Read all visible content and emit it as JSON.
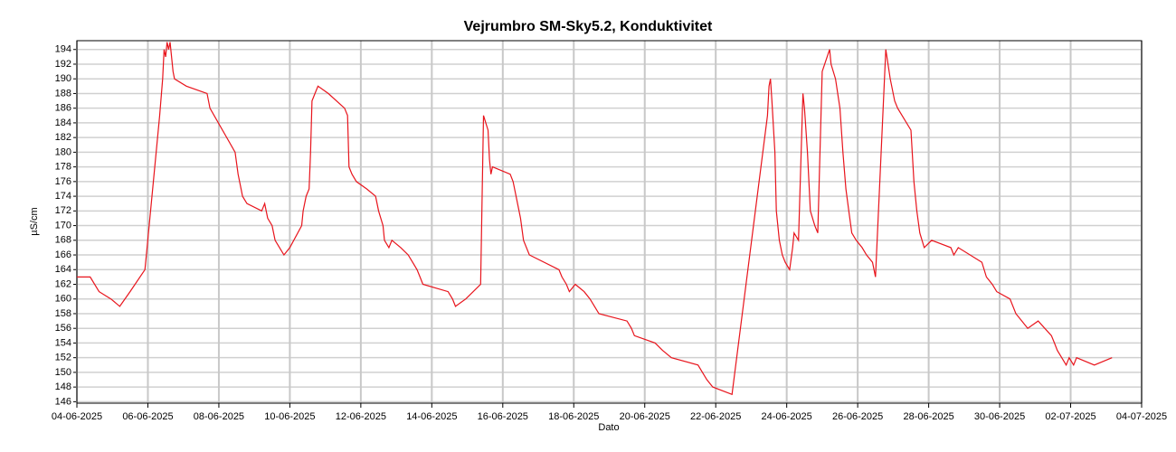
{
  "chart_data": {
    "type": "line",
    "title": "Vejrumbro SM-Sky5.2, Konduktivitet",
    "xlabel": "Dato",
    "ylabel": "µS/cm",
    "xlim": [
      "04-06-2025",
      "04-07-2025"
    ],
    "xticks": [
      "04-06-2025",
      "06-06-2025",
      "08-06-2025",
      "10-06-2025",
      "12-06-2025",
      "14-06-2025",
      "16-06-2025",
      "18-06-2025",
      "20-06-2025",
      "22-06-2025",
      "24-06-2025",
      "26-06-2025",
      "28-06-2025",
      "30-06-2025",
      "02-07-2025",
      "04-07-2025"
    ],
    "ylim": [
      145.8,
      195.2
    ],
    "yticks": [
      146,
      148,
      150,
      152,
      154,
      156,
      158,
      160,
      162,
      164,
      166,
      168,
      170,
      172,
      174,
      176,
      178,
      180,
      182,
      184,
      186,
      188,
      190,
      192,
      194
    ],
    "grid": true,
    "x": [
      "04-06-2025 00:00",
      "04-06-2025 09:00",
      "04-06-2025 15:00",
      "04-06-2025 23:00",
      "05-06-2025 05:00",
      "05-06-2025 12:00",
      "05-06-2025 22:00",
      "05-06-2025 23:00",
      "06-06-2025 08:00",
      "06-06-2025 10:00",
      "06-06-2025 11:00",
      "06-06-2025 12:00",
      "06-06-2025 13:00",
      "06-06-2025 14:00",
      "06-06-2025 15:00",
      "06-06-2025 17:00",
      "06-06-2025 18:00",
      "07-06-2025 02:00",
      "07-06-2025 16:00",
      "07-06-2025 18:00",
      "08-06-2025 11:00",
      "08-06-2025 13:00",
      "08-06-2025 15:00",
      "08-06-2025 16:00",
      "08-06-2025 19:00",
      "09-06-2025 05:00",
      "09-06-2025 07:00",
      "09-06-2025 09:00",
      "09-06-2025 12:00",
      "09-06-2025 14:00",
      "09-06-2025 17:00",
      "09-06-2025 20:00",
      "10-06-2025 00:00",
      "10-06-2025 08:00",
      "10-06-2025 09:00",
      "10-06-2025 11:00",
      "10-06-2025 13:00",
      "10-06-2025 14:00",
      "10-06-2025 15:00",
      "10-06-2025 17:00",
      "10-06-2025 19:00",
      "11-06-2025 02:00",
      "11-06-2025 13:00",
      "11-06-2025 15:00",
      "11-06-2025 16:00",
      "11-06-2025 18:00",
      "11-06-2025 21:00",
      "12-06-2025 04:00",
      "12-06-2025 10:00",
      "12-06-2025 12:00",
      "12-06-2025 15:00",
      "12-06-2025 16:00",
      "12-06-2025 19:00",
      "12-06-2025 21:00",
      "13-06-2025 03:00",
      "13-06-2025 08:00",
      "13-06-2025 11:00",
      "13-06-2025 14:00",
      "13-06-2025 16:00",
      "13-06-2025 18:00",
      "14-06-2025 11:00",
      "14-06-2025 14:00",
      "14-06-2025 16:00",
      "14-06-2025 23:00",
      "15-06-2025 09:00",
      "15-06-2025 11:00",
      "15-06-2025 14:00",
      "15-06-2025 15:00",
      "15-06-2025 16:00",
      "15-06-2025 17:00",
      "16-06-2025 05:00",
      "16-06-2025 07:00",
      "16-06-2025 09:00",
      "16-06-2025 12:00",
      "16-06-2025 14:00",
      "16-06-2025 18:00",
      "17-06-2025 14:00",
      "17-06-2025 16:00",
      "17-06-2025 19:00",
      "17-06-2025 21:00",
      "18-06-2025 01:00",
      "18-06-2025 07:00",
      "18-06-2025 11:00",
      "18-06-2025 14:00",
      "18-06-2025 17:00",
      "19-06-2025 12:00",
      "19-06-2025 15:00",
      "19-06-2025 17:00",
      "20-06-2025 07:00",
      "20-06-2025 12:00",
      "20-06-2025 18:00",
      "21-06-2025 12:00",
      "21-06-2025 15:00",
      "21-06-2025 18:00",
      "21-06-2025 22:00",
      "22-06-2025 11:00",
      "23-06-2025 11:00",
      "23-06-2025 12:00",
      "23-06-2025 13:00",
      "23-06-2025 14:00",
      "23-06-2025 16:00",
      "23-06-2025 17:00",
      "23-06-2025 19:00",
      "23-06-2025 21:00",
      "23-06-2025 23:00",
      "24-06-2025 02:00",
      "24-06-2025 04:00",
      "24-06-2025 05:00",
      "24-06-2025 08:00",
      "24-06-2025 11:00",
      "24-06-2025 12:00",
      "24-06-2025 14:00",
      "24-06-2025 16:00",
      "24-06-2025 19:00",
      "24-06-2025 21:00",
      "25-06-2025 00:00",
      "25-06-2025 05:00",
      "25-06-2025 06:00",
      "25-06-2025 09:00",
      "25-06-2025 12:00",
      "25-06-2025 14:00",
      "25-06-2025 16:00",
      "25-06-2025 18:00",
      "25-06-2025 20:00",
      "25-06-2025 23:00",
      "26-06-2025 03:00",
      "26-06-2025 06:00",
      "26-06-2025 10:00",
      "26-06-2025 12:00",
      "26-06-2025 19:00",
      "26-06-2025 22:00",
      "27-06-2025 01:00",
      "27-06-2025 03:00",
      "27-06-2025 12:00",
      "27-06-2025 14:00",
      "27-06-2025 16:00",
      "27-06-2025 18:00",
      "27-06-2025 21:00",
      "28-06-2025 02:00",
      "28-06-2025 15:00",
      "28-06-2025 17:00",
      "28-06-2025 20:00",
      "29-06-2025 12:00",
      "29-06-2025 15:00",
      "29-06-2025 19:00",
      "29-06-2025 22:00",
      "30-06-2025 07:00",
      "30-06-2025 11:00",
      "30-06-2025 15:00",
      "30-06-2025 19:00",
      "01-07-2025 02:00",
      "01-07-2025 11:00",
      "01-07-2025 13:00",
      "01-07-2025 15:00",
      "01-07-2025 18:00",
      "01-07-2025 21:00",
      "01-07-2025 23:00",
      "02-07-2025 02:00",
      "02-07-2025 04:00",
      "02-07-2025 16:00",
      "03-07-2025 04:00"
    ],
    "series": [
      {
        "color": "#e8141c",
        "values": [
          163,
          163,
          161,
          160,
          159,
          161,
          164,
          166,
          185,
          190,
          194,
          193,
          195,
          194,
          195,
          191,
          190,
          189,
          188,
          186,
          180,
          177,
          175,
          174,
          173,
          172,
          173,
          171,
          170,
          168,
          167,
          166,
          167,
          170,
          172,
          174,
          175,
          180,
          187,
          188,
          189,
          188,
          186,
          185,
          178,
          177,
          176,
          175,
          174,
          172,
          170,
          168,
          167,
          168,
          167,
          166,
          165,
          164,
          163,
          162,
          161,
          160,
          159,
          160,
          162,
          185,
          183,
          179,
          177,
          178,
          177,
          176,
          174,
          171,
          168,
          166,
          164,
          163,
          162,
          161,
          162,
          161,
          160,
          159,
          158,
          157,
          156,
          155,
          154,
          153,
          152,
          151,
          150,
          149,
          148,
          147,
          185,
          189,
          190,
          187,
          180,
          172,
          168,
          166,
          165,
          164,
          167,
          169,
          168,
          188,
          186,
          180,
          172,
          170,
          169,
          191,
          194,
          192,
          190,
          186,
          180,
          175,
          172,
          169,
          168,
          167,
          166,
          165,
          163,
          194,
          190,
          187,
          186,
          183,
          176,
          172,
          169,
          167,
          168,
          167,
          166,
          167,
          165,
          163,
          162,
          161,
          160,
          158,
          157,
          156,
          157,
          155,
          154,
          153,
          152,
          151,
          152,
          151,
          152,
          151,
          152
        ]
      }
    ]
  }
}
